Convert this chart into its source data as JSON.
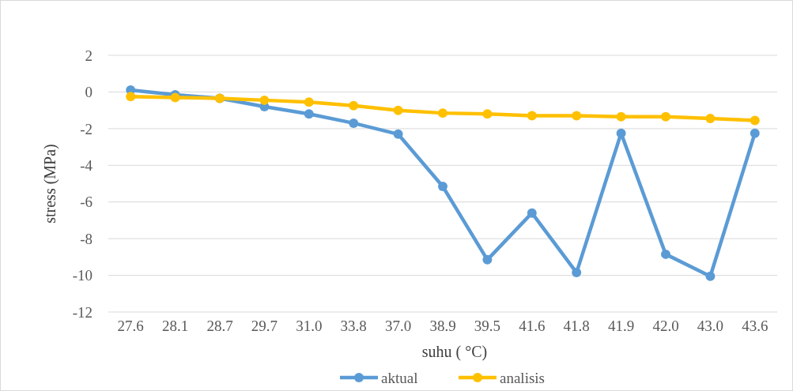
{
  "chart_data": {
    "type": "line",
    "xlabel": "suhu ( °C)",
    "ylabel": "stress (MPa)",
    "categories": [
      "27.6",
      "28.1",
      "28.7",
      "29.7",
      "31.0",
      "33.8",
      "37.0",
      "38.9",
      "39.5",
      "41.6",
      "41.8",
      "41.9",
      "42.0",
      "43.0",
      "43.6"
    ],
    "series": [
      {
        "name": "aktual",
        "color": "#5b9bd5",
        "values": [
          0.1,
          -0.15,
          -0.35,
          -0.8,
          -1.2,
          -1.7,
          -2.3,
          -5.15,
          -9.15,
          -6.6,
          -9.85,
          -2.25,
          -8.85,
          -10.05,
          -2.25
        ]
      },
      {
        "name": "analisis",
        "color": "#ffc000",
        "values": [
          -0.25,
          -0.3,
          -0.35,
          -0.45,
          -0.55,
          -0.75,
          -1.0,
          -1.15,
          -1.2,
          -1.3,
          -1.3,
          -1.35,
          -1.35,
          -1.45,
          -1.55
        ]
      }
    ],
    "ylim": [
      -12,
      2
    ],
    "yticks": [
      -12,
      -10,
      -8,
      -6,
      -4,
      -2,
      0,
      2
    ],
    "grid": "y",
    "legend": "bottom",
    "marker": "circle",
    "line_style": "solid"
  }
}
